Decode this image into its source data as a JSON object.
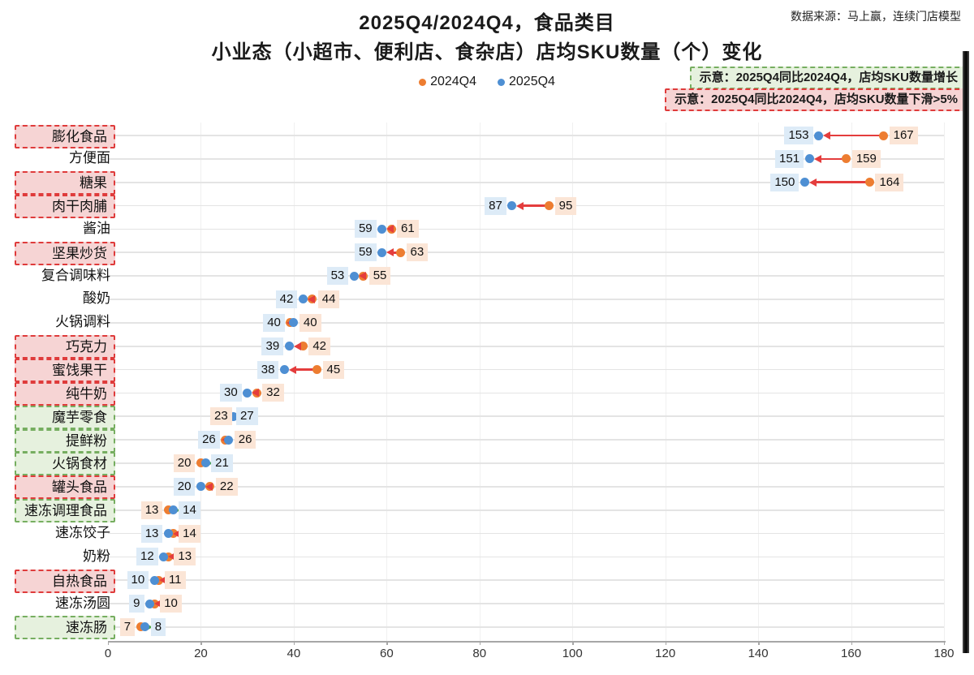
{
  "title": "2025Q4/2024Q4，食品类目",
  "subtitle": "小业态（小超市、便利店、食杂店）店均SKU数量（个）变化",
  "source": "数据来源：马上赢，连续门店模型",
  "legend": {
    "items": [
      {
        "label": "2024Q4",
        "color": "#ED7D31"
      },
      {
        "label": "2025Q4",
        "color": "#4E8FD3"
      }
    ]
  },
  "callouts": {
    "increase": {
      "text": "示意：2025Q4同比2024Q4，店均SKU数量增长"
    },
    "decrease": {
      "text": "示意：2025Q4同比2024Q4，店均SKU数量下滑>5%"
    }
  },
  "colors": {
    "dot_2024": "#ED7D31",
    "dot_2025": "#4E8FD3",
    "label_bg_2024": "#FBE5D6",
    "label_bg_2025": "#DDEBF7",
    "arrow_decrease": "#E43D3D",
    "arrow_increase": "#4CA64C",
    "cat_decrease_bg": "#F6D4D4",
    "cat_decrease_border": "#DF3B3B",
    "cat_increase_bg": "#E6F1DE",
    "cat_increase_border": "#76AE60"
  },
  "chart_data": {
    "type": "scatter",
    "subtype": "dumbbell-dot-plot",
    "series": [
      "2024Q4",
      "2025Q4"
    ],
    "xlim": [
      0,
      180
    ],
    "x_ticks": [
      0,
      20,
      40,
      60,
      80,
      100,
      120,
      140,
      160,
      180
    ],
    "grid": true,
    "legend_position": "top-center",
    "rows": [
      {
        "category": "膨化食品",
        "q2024": 167,
        "q2025": 153,
        "highlight": "decrease"
      },
      {
        "category": "方便面",
        "q2024": 159,
        "q2025": 151,
        "highlight": "none"
      },
      {
        "category": "糖果",
        "q2024": 164,
        "q2025": 150,
        "highlight": "decrease"
      },
      {
        "category": "肉干肉脯",
        "q2024": 95,
        "q2025": 87,
        "highlight": "decrease"
      },
      {
        "category": "酱油",
        "q2024": 61,
        "q2025": 59,
        "highlight": "none"
      },
      {
        "category": "坚果炒货",
        "q2024": 63,
        "q2025": 59,
        "highlight": "decrease"
      },
      {
        "category": "复合调味料",
        "q2024": 55,
        "q2025": 53,
        "highlight": "none"
      },
      {
        "category": "酸奶",
        "q2024": 44,
        "q2025": 42,
        "highlight": "none"
      },
      {
        "category": "火锅调料",
        "q2024": 40,
        "q2025": 40,
        "highlight": "none"
      },
      {
        "category": "巧克力",
        "q2024": 42,
        "q2025": 39,
        "highlight": "decrease"
      },
      {
        "category": "蜜饯果干",
        "q2024": 45,
        "q2025": 38,
        "highlight": "decrease"
      },
      {
        "category": "纯牛奶",
        "q2024": 32,
        "q2025": 30,
        "highlight": "decrease"
      },
      {
        "category": "魔芋零食",
        "q2024": 23,
        "q2025": 27,
        "highlight": "increase",
        "label_layout": "stacked"
      },
      {
        "category": "提鲜粉",
        "q2024": 26,
        "q2025": 26,
        "highlight": "increase"
      },
      {
        "category": "火锅食材",
        "q2024": 20,
        "q2025": 21,
        "highlight": "increase"
      },
      {
        "category": "罐头食品",
        "q2024": 22,
        "q2025": 20,
        "highlight": "decrease"
      },
      {
        "category": "速冻调理食品",
        "q2024": 13,
        "q2025": 14,
        "highlight": "increase"
      },
      {
        "category": "速冻饺子",
        "q2024": 14,
        "q2025": 13,
        "highlight": "none"
      },
      {
        "category": "奶粉",
        "q2024": 13,
        "q2025": 12,
        "highlight": "none"
      },
      {
        "category": "自热食品",
        "q2024": 11,
        "q2025": 10,
        "highlight": "decrease"
      },
      {
        "category": "速冻汤圆",
        "q2024": 10,
        "q2025": 9,
        "highlight": "none"
      },
      {
        "category": "速冻肠",
        "q2024": 7,
        "q2025": 8,
        "highlight": "increase"
      }
    ]
  }
}
